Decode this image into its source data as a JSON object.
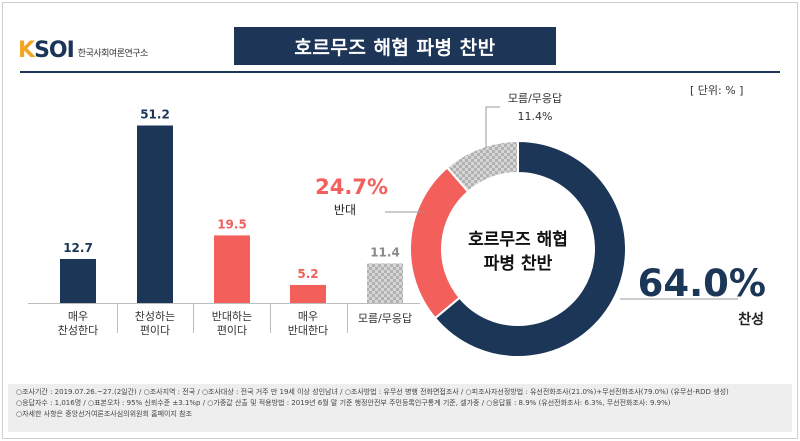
{
  "logo": {
    "mark_k": "K",
    "mark_rest": "SOI",
    "subtitle": "한국사회여론연구소"
  },
  "title": "호르무즈 해협 파병 찬반",
  "unit": "[ 단위: % ]",
  "colors": {
    "navy": "#1b3656",
    "red": "#f35f5a",
    "gray": "#c4c4c4"
  },
  "chart_data": [
    {
      "type": "bar",
      "categories": [
        "매우\n찬성한다",
        "찬성하는\n편이다",
        "반대하는\n편이다",
        "매우\n반대한다",
        "모름/무응답"
      ],
      "values": [
        12.7,
        51.2,
        19.5,
        5.2,
        11.4
      ],
      "value_labels": [
        "12.7",
        "51.2",
        "19.5",
        "5.2",
        "11.4"
      ],
      "bar_colors": [
        "#1b3656",
        "#1b3656",
        "#f35f5a",
        "#f35f5a",
        "#c4c4c4"
      ],
      "ylim": [
        0,
        60
      ]
    },
    {
      "type": "pie",
      "donut": true,
      "center_label": [
        "호르무즈 해협",
        "파병 찬반"
      ],
      "slices": [
        {
          "label": "찬성",
          "value": 64.0,
          "value_label": "64.0%",
          "color": "#1b3656"
        },
        {
          "label": "반대",
          "value": 24.7,
          "value_label": "24.7%",
          "color": "#f35f5a"
        },
        {
          "label": "모름/무응답",
          "value": 11.4,
          "value_label": "11.4%",
          "color": "#c4c4c4"
        }
      ]
    }
  ],
  "footer": {
    "lines": [
      "○조사기간 : 2019.07.26.~27.(2일간) / ○조사지역 : 전국 / ○조사대상 : 전국 거주 만 19세 이상 성인남녀 / ○조사방법 : 유무선 병행 전화면접조사 / ○피조사자선정방법 : 유선전화조사(21.0%)+무선전화조사(79.0%) (유무선-RDD 생성)",
      "○응답자수 : 1,016명 / ○표본오차 : 95% 신뢰수준 ±3.1%p / ○가중값 산출 및 적용방법 : 2019년 6월 말 기준 행정안전부 주민등록인구통계 기준, 셀가중 / ○응답률 : 8.9% (유선전화조사: 6.3%, 무선전화조사: 9.9%)",
      "○자세한 사항은 중앙선거여론조사심의위원회 홈페이지 참조"
    ]
  }
}
